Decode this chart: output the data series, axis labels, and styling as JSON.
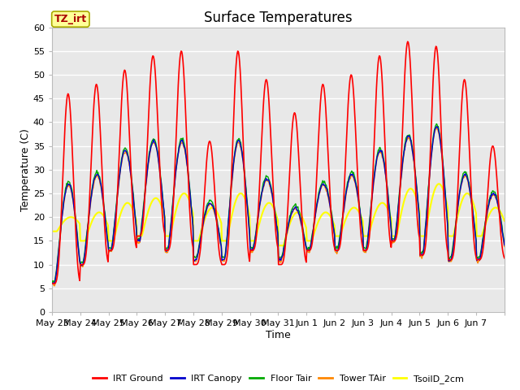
{
  "title": "Surface Temperatures",
  "xlabel": "Time",
  "ylabel": "Temperature (C)",
  "ylim": [
    0,
    60
  ],
  "yticks": [
    0,
    5,
    10,
    15,
    20,
    25,
    30,
    35,
    40,
    45,
    50,
    55,
    60
  ],
  "x_labels": [
    "May 23",
    "May 24",
    "May 25",
    "May 26",
    "May 27",
    "May 28",
    "May 29",
    "May 30",
    "May 31",
    "Jun 1",
    "Jun 2",
    "Jun 3",
    "Jun 4",
    "Jun 5",
    "Jun 6",
    "Jun 7"
  ],
  "annotation_text": "TZ_irt",
  "annotation_box_facecolor": "#ffff99",
  "annotation_box_edgecolor": "#aaaa00",
  "series_names": [
    "IRT Ground",
    "IRT Canopy",
    "Floor Tair",
    "Tower TAir",
    "TsoilD_2cm"
  ],
  "series_colors": [
    "#ff0000",
    "#0000cc",
    "#00aa00",
    "#ff8800",
    "#ffff00"
  ],
  "series_lw": [
    1.2,
    1.0,
    1.0,
    1.0,
    1.5
  ],
  "plot_background": "#e8e8e8",
  "grid_color": "#ffffff",
  "title_fontsize": 12,
  "axis_label_fontsize": 9,
  "tick_fontsize": 8,
  "n_days": 16,
  "pts_per_day": 48,
  "day_peaks_ground": [
    46,
    48,
    51,
    54,
    55,
    36,
    55,
    49,
    42,
    48,
    50,
    54,
    57,
    56,
    49,
    35
  ],
  "day_mins_ground": [
    6,
    10,
    13,
    16,
    13,
    10,
    10,
    13,
    10,
    13,
    13,
    13,
    15,
    12,
    11,
    11
  ],
  "air_peaks": [
    27,
    29,
    34,
    36,
    36,
    23,
    36,
    28,
    22,
    27,
    29,
    34,
    37,
    39,
    29,
    25
  ],
  "air_mins": [
    6,
    10,
    13,
    15,
    13,
    11,
    11,
    13,
    11,
    13,
    13,
    13,
    15,
    12,
    11,
    11
  ],
  "soil_peaks": [
    20,
    21,
    23,
    24,
    25,
    22,
    25,
    23,
    21,
    21,
    22,
    23,
    26,
    27,
    25,
    22
  ],
  "soil_mins": [
    17,
    15,
    15,
    16,
    16,
    15,
    15,
    15,
    14,
    15,
    16,
    16,
    16,
    16,
    16,
    16
  ]
}
